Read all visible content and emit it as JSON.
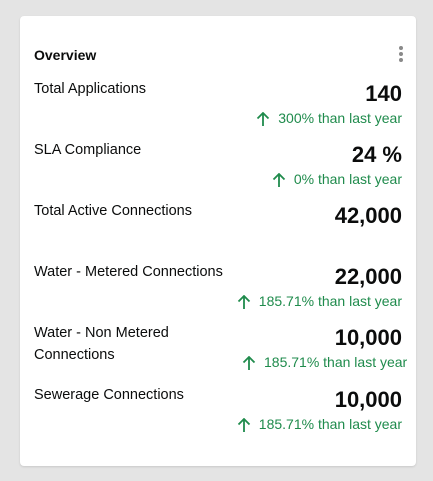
{
  "card": {
    "title": "Overview",
    "menu_icon": "more-vertical-icon",
    "trend_color": "#1f8b4c",
    "metrics": [
      {
        "label": "Total Applications",
        "value": "140",
        "trend": "300% than last year",
        "trend_icon": "arrow-up-icon"
      },
      {
        "label": "SLA Compliance",
        "value": "24 %",
        "trend": "0% than last year",
        "trend_icon": "arrow-up-icon"
      },
      {
        "label": "Total Active Connections",
        "value": "42,000"
      },
      {
        "label": "Water - Metered Connections",
        "value": "22,000",
        "trend": "185.71% than last year",
        "trend_icon": "arrow-up-icon"
      },
      {
        "label": "Water - Non Metered Connections",
        "value": "10,000",
        "trend": "185.71% than last year",
        "trend_icon": "arrow-up-icon"
      },
      {
        "label": "Sewerage Connections",
        "value": "10,000",
        "trend": "185.71% than last year",
        "trend_icon": "arrow-up-icon"
      }
    ]
  }
}
